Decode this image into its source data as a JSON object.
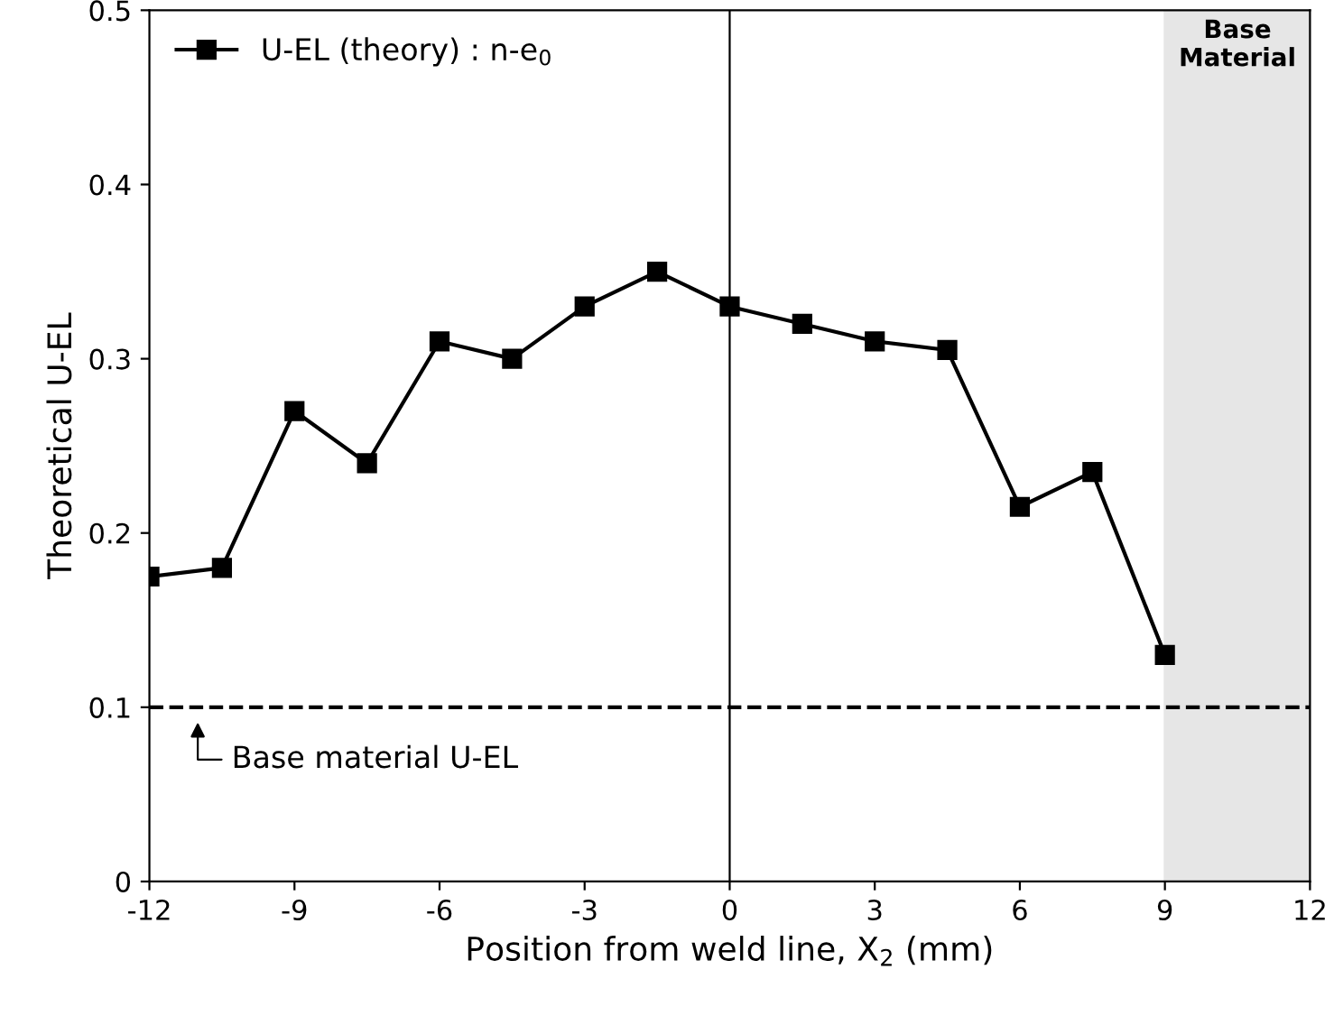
{
  "chart_data": {
    "type": "line",
    "xlabel": "Position from weld line, X$_{2}$ (mm)",
    "ylabel": "Theoretical U-EL",
    "x": [
      -12,
      -10.5,
      -9,
      -7.5,
      -6,
      -4.5,
      -3,
      -1.5,
      0,
      1.5,
      3,
      4.5,
      6,
      7.5,
      9
    ],
    "series": [
      {
        "name": "U-EL (theory) : n-e$_{0}$",
        "color": "#000000",
        "values": [
          0.175,
          0.18,
          0.27,
          0.24,
          0.31,
          0.3,
          0.33,
          0.35,
          0.33,
          0.32,
          0.31,
          0.305,
          0.215,
          0.235,
          0.13
        ]
      }
    ],
    "marker": "square",
    "line_style": "solid",
    "xlim": [
      -12,
      12
    ],
    "xticks": [
      -12,
      -9,
      -6,
      -3,
      0,
      3,
      6,
      9,
      12
    ],
    "ylim": [
      0,
      0.5
    ],
    "yticks": [
      0,
      0.1,
      0.2,
      0.3,
      0.4,
      0.5
    ],
    "grid": false,
    "legend": "top left",
    "ref_lines": [
      {
        "axis": "y",
        "value": 0.1,
        "line_style": "dashed",
        "color": "#000000"
      },
      {
        "axis": "x",
        "value": 0,
        "line_style": "solid",
        "color": "#000000"
      }
    ],
    "bands": [
      {
        "axis": "x",
        "from": 9,
        "to": 12,
        "label": "Base\nMaterial",
        "color": "#e6e6e6"
      }
    ],
    "annotations": [
      {
        "text": "Base material U-EL",
        "x": -11,
        "y": 0.1
      }
    ]
  }
}
